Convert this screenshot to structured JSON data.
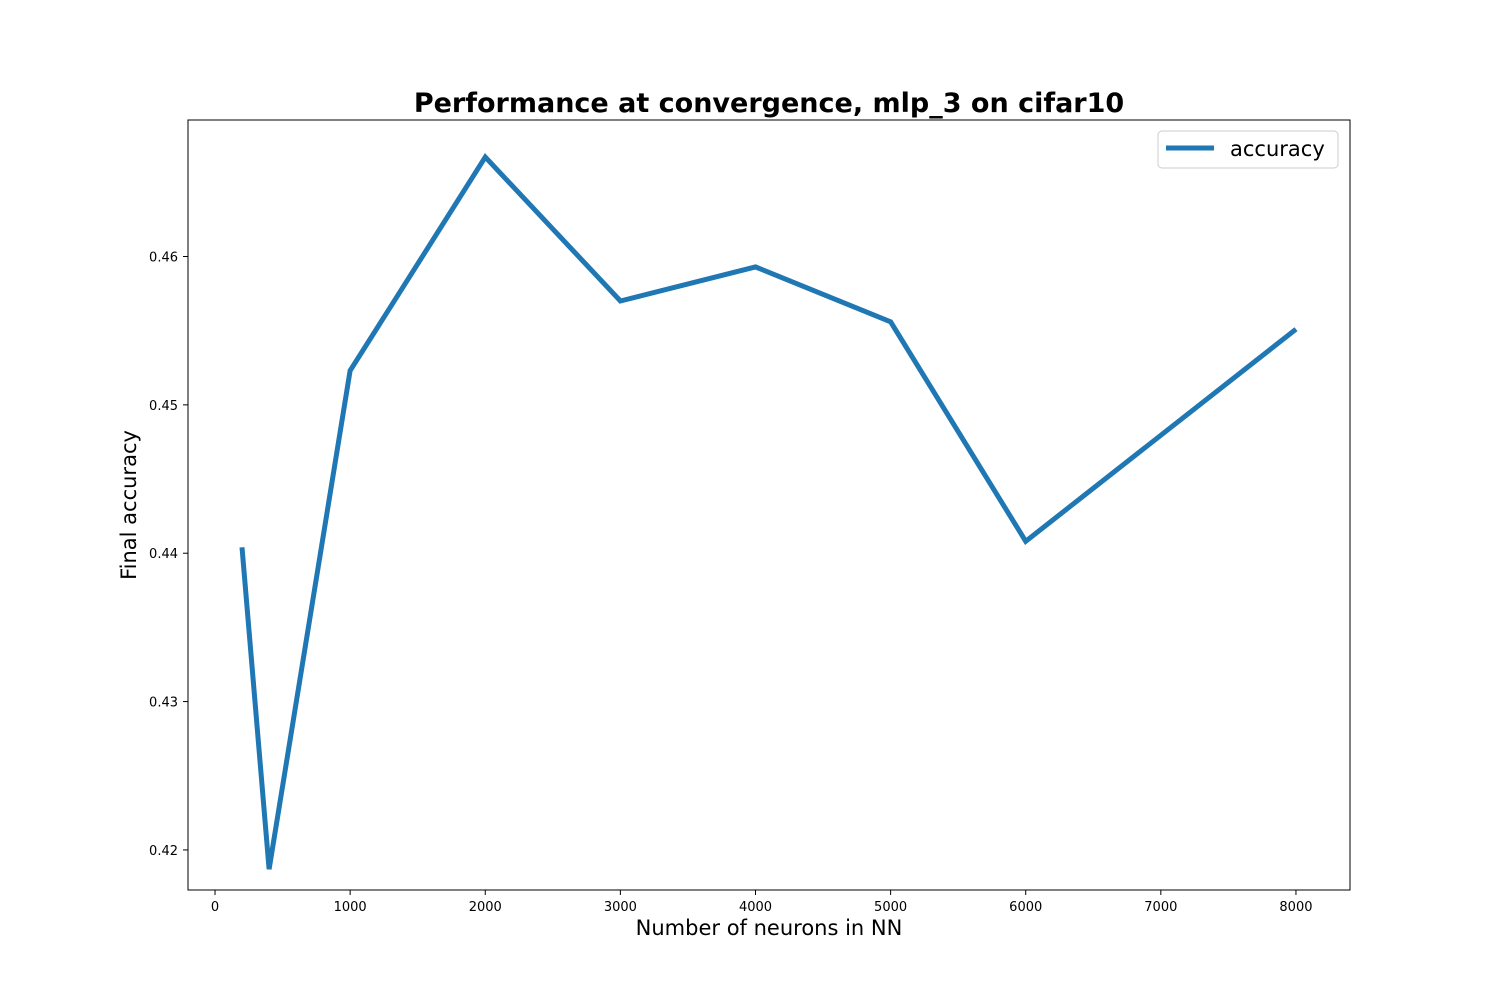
{
  "chart_data": {
    "type": "line",
    "title": "Performance at convergence, mlp_3 on cifar10",
    "xlabel": "Number of neurons in NN",
    "ylabel": "Final accuracy",
    "xlim": [
      -200,
      8400
    ],
    "ylim": [
      0.4173,
      0.4692
    ],
    "xticks": [
      0,
      1000,
      2000,
      3000,
      4000,
      5000,
      6000,
      7000,
      8000
    ],
    "xtick_labels": [
      "0",
      "1000",
      "2000",
      "3000",
      "4000",
      "5000",
      "6000",
      "7000",
      "8000"
    ],
    "yticks": [
      0.42,
      0.43,
      0.44,
      0.45,
      0.46
    ],
    "ytick_labels": [
      "0.42",
      "0.43",
      "0.44",
      "0.45",
      "0.46"
    ],
    "grid": false,
    "legend_position": "top-right",
    "series": [
      {
        "name": "accuracy",
        "color": "#1f77b4",
        "x": [
          200,
          400,
          1000,
          2000,
          3000,
          4000,
          5000,
          6000,
          8000
        ],
        "y": [
          0.4404,
          0.4187,
          0.4523,
          0.4667,
          0.457,
          0.4593,
          0.4556,
          0.4408,
          0.4551
        ]
      }
    ]
  }
}
